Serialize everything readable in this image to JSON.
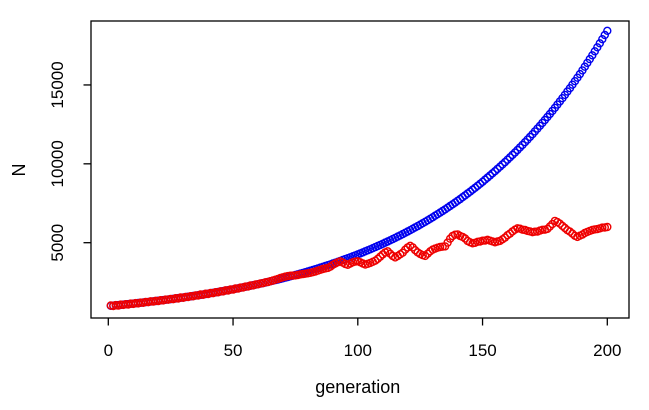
{
  "figure": {
    "background_color": "#FFFFFF",
    "axis_color": "#000000",
    "has_title": false,
    "has_legend": false
  },
  "chart_data": {
    "type": "scatter",
    "marker": "open-circle",
    "title": "",
    "xlabel": "generation",
    "ylabel": "N",
    "x_ticks": [
      0,
      50,
      100,
      150,
      200
    ],
    "y_ticks": [
      5000,
      10000,
      15000
    ],
    "xlim": [
      -7,
      208
    ],
    "ylim": [
      230,
      19040
    ],
    "grid": false,
    "legend_position": "none",
    "x_values": [
      1,
      2,
      3,
      4,
      5,
      6,
      7,
      8,
      9,
      10,
      11,
      12,
      13,
      14,
      15,
      16,
      17,
      18,
      19,
      20,
      21,
      22,
      23,
      24,
      25,
      26,
      27,
      28,
      29,
      30,
      31,
      32,
      33,
      34,
      35,
      36,
      37,
      38,
      39,
      40,
      41,
      42,
      43,
      44,
      45,
      46,
      47,
      48,
      49,
      50,
      51,
      52,
      53,
      54,
      55,
      56,
      57,
      58,
      59,
      60,
      61,
      62,
      63,
      64,
      65,
      66,
      67,
      68,
      69,
      70,
      71,
      72,
      73,
      74,
      75,
      76,
      77,
      78,
      79,
      80,
      81,
      82,
      83,
      84,
      85,
      86,
      87,
      88,
      89,
      90,
      91,
      92,
      93,
      94,
      95,
      96,
      97,
      98,
      99,
      100,
      101,
      102,
      103,
      104,
      105,
      106,
      107,
      108,
      109,
      110,
      111,
      112,
      113,
      114,
      115,
      116,
      117,
      118,
      119,
      120,
      121,
      122,
      123,
      124,
      125,
      126,
      127,
      128,
      129,
      130,
      131,
      132,
      133,
      134,
      135,
      136,
      137,
      138,
      139,
      140,
      141,
      142,
      143,
      144,
      145,
      146,
      147,
      148,
      149,
      150,
      151,
      152,
      153,
      154,
      155,
      156,
      157,
      158,
      159,
      160,
      161,
      162,
      163,
      164,
      165,
      166,
      167,
      168,
      169,
      170,
      171,
      172,
      173,
      174,
      175,
      176,
      177,
      178,
      179,
      180,
      181,
      182,
      183,
      184,
      185,
      186,
      187,
      188,
      189,
      190,
      191,
      192,
      193,
      194,
      195,
      196,
      197,
      198,
      199,
      200
    ],
    "series": [
      {
        "name": "blue-exponential",
        "color": "#0000EE",
        "values": [
          1000,
          1015,
          1030,
          1045,
          1060,
          1076,
          1092,
          1108,
          1124,
          1141,
          1158,
          1175,
          1192,
          1210,
          1227,
          1246,
          1264,
          1283,
          1301,
          1321,
          1340,
          1360,
          1380,
          1400,
          1421,
          1442,
          1463,
          1485,
          1507,
          1529,
          1551,
          1574,
          1597,
          1621,
          1645,
          1669,
          1694,
          1719,
          1744,
          1770,
          1796,
          1822,
          1849,
          1876,
          1904,
          1932,
          1961,
          1990,
          2019,
          2049,
          2079,
          2110,
          2141,
          2172,
          2204,
          2237,
          2270,
          2303,
          2337,
          2372,
          2407,
          2442,
          2478,
          2515,
          2552,
          2590,
          2628,
          2667,
          2706,
          2746,
          2786,
          2827,
          2869,
          2911,
          2954,
          2998,
          3042,
          3087,
          3133,
          3179,
          3226,
          3273,
          3322,
          3371,
          3420,
          3471,
          3522,
          3574,
          3627,
          3680,
          3734,
          3789,
          3845,
          3902,
          3960,
          4018,
          4077,
          4137,
          4198,
          4260,
          4323,
          4387,
          4452,
          4517,
          4584,
          4652,
          4720,
          4790,
          4861,
          4932,
          5005,
          5079,
          5154,
          5230,
          5307,
          5385,
          5465,
          5545,
          5627,
          5710,
          5794,
          5880,
          5967,
          6055,
          6144,
          6235,
          6327,
          6420,
          6515,
          6611,
          6709,
          6808,
          6908,
          7010,
          7113,
          7218,
          7325,
          7433,
          7543,
          7654,
          7767,
          7882,
          7998,
          8116,
          8236,
          8357,
          8481,
          8606,
          8733,
          8862,
          8993,
          9125,
          9260,
          9397,
          9535,
          9676,
          9819,
          9964,
          10111,
          10260,
          10411,
          10565,
          10721,
          10879,
          11039,
          11202,
          11368,
          11535,
          11706,
          11878,
          12054,
          12231,
          12412,
          12595,
          12781,
          12969,
          13161,
          13355,
          13552,
          13752,
          13955,
          14161,
          14370,
          14582,
          14797,
          15015,
          15237,
          15462,
          15690,
          15921,
          16156,
          16395,
          16637,
          16882,
          17131,
          17384,
          17641,
          17901,
          18165,
          18433
        ]
      },
      {
        "name": "red-noisy-saturating",
        "color": "#EE0000",
        "values": [
          1020,
          985,
          1045,
          1015,
          1075,
          1055,
          1100,
          1085,
          1140,
          1120,
          1170,
          1150,
          1205,
          1190,
          1245,
          1230,
          1285,
          1265,
          1320,
          1300,
          1355,
          1340,
          1395,
          1385,
          1435,
          1420,
          1480,
          1465,
          1525,
          1510,
          1565,
          1555,
          1610,
          1600,
          1660,
          1650,
          1715,
          1700,
          1765,
          1750,
          1815,
          1800,
          1865,
          1855,
          1920,
          1910,
          1980,
          1970,
          2035,
          2030,
          2095,
          2090,
          2155,
          2160,
          2220,
          2225,
          2285,
          2295,
          2350,
          2365,
          2420,
          2435,
          2490,
          2510,
          2560,
          2605,
          2655,
          2705,
          2760,
          2805,
          2850,
          2885,
          2905,
          2915,
          2930,
          2955,
          2990,
          3010,
          3035,
          3060,
          3095,
          3130,
          3175,
          3230,
          3285,
          3335,
          3370,
          3400,
          3480,
          3600,
          3680,
          3760,
          3820,
          3740,
          3650,
          3600,
          3680,
          3760,
          3800,
          3820,
          3760,
          3680,
          3620,
          3660,
          3720,
          3790,
          3860,
          3980,
          4120,
          4260,
          4385,
          4455,
          4305,
          4155,
          4065,
          4155,
          4265,
          4365,
          4555,
          4705,
          4805,
          4705,
          4525,
          4385,
          4285,
          4205,
          4165,
          4305,
          4455,
          4565,
          4625,
          4685,
          4725,
          4745,
          4765,
          5005,
          5255,
          5425,
          5505,
          5525,
          5425,
          5365,
          5265,
          5105,
          5025,
          4965,
          4995,
          5055,
          5075,
          5125,
          5135,
          5185,
          5125,
          5085,
          5025,
          5075,
          5115,
          5215,
          5325,
          5475,
          5575,
          5715,
          5825,
          5915,
          5885,
          5825,
          5805,
          5745,
          5715,
          5665,
          5695,
          5705,
          5765,
          5815,
          5825,
          5875,
          6025,
          6185,
          6385,
          6305,
          6205,
          6065,
          5935,
          5795,
          5705,
          5575,
          5435,
          5365,
          5445,
          5515,
          5615,
          5685,
          5745,
          5805,
          5845,
          5865,
          5905,
          5955,
          5965,
          5995
        ]
      }
    ]
  }
}
